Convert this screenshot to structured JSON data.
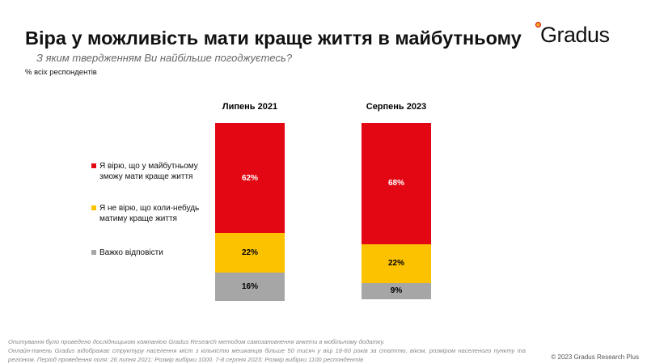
{
  "header": {
    "title": "Віра у можливість мати краще життя в майбутньому",
    "subtitle": "З яким твердженням Ви найбільше погоджуєтесь?",
    "base": "% всіх респондентів",
    "logo": "Gradus"
  },
  "chart_data": {
    "type": "bar",
    "stacked": true,
    "categories": [
      "Липень 2021",
      "Серпень 2023"
    ],
    "series": [
      {
        "name": "Я вірю, що у майбутньому зможу мати краще життя",
        "color": "#e30613",
        "values": [
          62,
          68
        ],
        "labels": [
          "62%",
          "68%"
        ]
      },
      {
        "name": "Я не вірю, що коли-небудь матиму краще життя",
        "color": "#fcc200",
        "values": [
          22,
          22
        ],
        "labels": [
          "22%",
          "22%"
        ]
      },
      {
        "name": "Важко відповісти",
        "color": "#a6a6a6",
        "values": [
          16,
          9
        ],
        "labels": [
          "16%",
          "9%"
        ]
      }
    ],
    "legend_position": "left",
    "ylim": [
      0,
      100
    ]
  },
  "footer": {
    "lines": [
      "Опитування було проведено дослідницькою компанією Gradus Research методом самозаповнення анкети в мобільному додатку.",
      "Онлайн-панель Gradus відображає структуру населення міст з кількістю мешканців більше 50 тисяч у віці 18-60 років за статтю, віком, розміром населеного пункту та регіоном. Період проведення поля: 26 липня 2021: Розмір вибірки 1000. 7-8 серпня 2023: Розмір вибірки 1100 респондентів"
    ],
    "copyright": "© 2023 Gradus Research Plus"
  }
}
